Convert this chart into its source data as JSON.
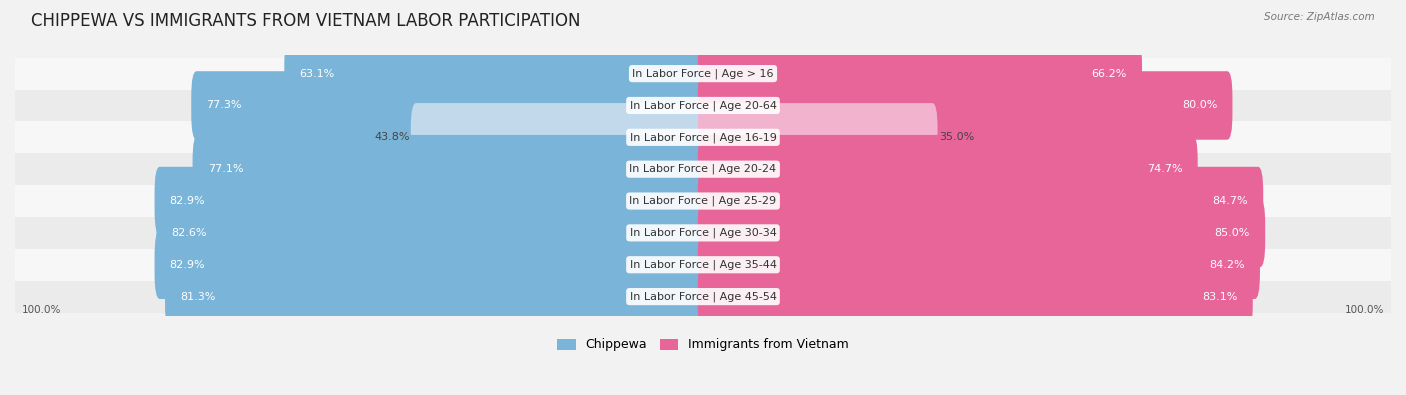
{
  "title": "CHIPPEWA VS IMMIGRANTS FROM VIETNAM LABOR PARTICIPATION",
  "source": "Source: ZipAtlas.com",
  "categories": [
    "In Labor Force | Age > 16",
    "In Labor Force | Age 20-64",
    "In Labor Force | Age 16-19",
    "In Labor Force | Age 20-24",
    "In Labor Force | Age 25-29",
    "In Labor Force | Age 30-34",
    "In Labor Force | Age 35-44",
    "In Labor Force | Age 45-54"
  ],
  "chippewa_values": [
    63.1,
    77.3,
    43.8,
    77.1,
    82.9,
    82.6,
    82.9,
    81.3
  ],
  "vietnam_values": [
    66.2,
    80.0,
    35.0,
    74.7,
    84.7,
    85.0,
    84.2,
    83.1
  ],
  "chippewa_color": "#7ab4d8",
  "chippewa_color_light": "#c2d9ec",
  "vietnam_color": "#e8659a",
  "vietnam_color_light": "#f2b3cf",
  "bar_height": 0.55,
  "background_color": "#f2f2f2",
  "row_bg_colors": [
    "#f7f7f7",
    "#ebebeb"
  ],
  "max_value": 100.0,
  "legend_chippewa": "Chippewa",
  "legend_vietnam": "Immigrants from Vietnam",
  "title_fontsize": 12,
  "label_fontsize": 8,
  "value_fontsize": 8
}
